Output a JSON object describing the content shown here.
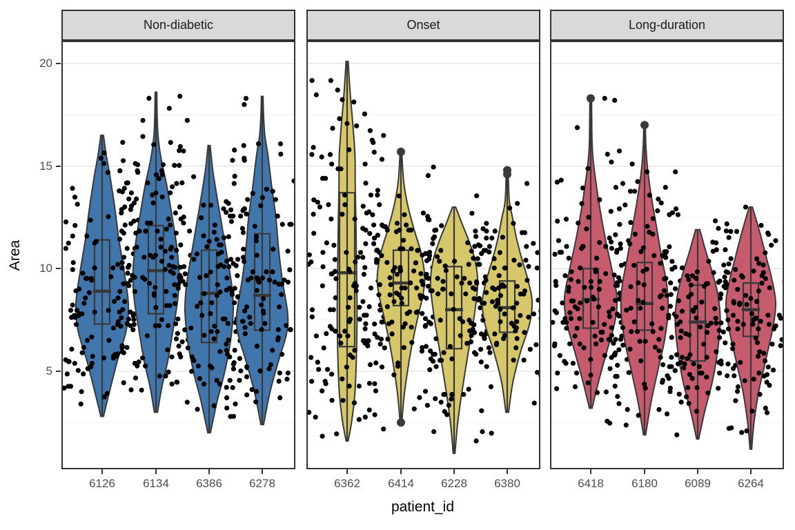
{
  "chart_data": {
    "type": "violin",
    "description": "Faceted violin plots with inner boxplots and black jittered points of Area by patient_id",
    "xlabel": "patient_id",
    "ylabel": "Area",
    "y_ticks": [
      20,
      15,
      10,
      5
    ],
    "ylim": [
      0.2,
      21.1
    ],
    "grid": "major and minor horizontal gridlines",
    "legend": "none",
    "style": {
      "violin_outline": "#383838",
      "point_color": "#000000",
      "strip_fill": "#d9d9d9",
      "panel_border": "#333333",
      "grid_major": "#e5e5e5",
      "grid_minor": "#f0f0f0",
      "tick_text": "#4d4d4d",
      "background": "#ffffff"
    },
    "facets": [
      {
        "label": "Non-diabetic",
        "fill": "#4176ac",
        "violins": [
          {
            "patient_id": "6126",
            "min": 2.8,
            "max": 16.5,
            "q1": 7.3,
            "median": 8.9,
            "q3": 11.4,
            "n_points": 120,
            "outliers": [],
            "profile": [
              [
                2.8,
                0.05
              ],
              [
                4,
                0.28
              ],
              [
                5.5,
                0.58
              ],
              [
                7,
                0.92
              ],
              [
                8.3,
                1.0
              ],
              [
                10,
                0.82
              ],
              [
                11.5,
                0.63
              ],
              [
                13,
                0.48
              ],
              [
                14.5,
                0.3
              ],
              [
                15.5,
                0.16
              ],
              [
                16.5,
                0.05
              ]
            ]
          },
          {
            "patient_id": "6134",
            "min": 3.0,
            "max": 18.6,
            "q1": 7.8,
            "median": 9.9,
            "q3": 12.1,
            "n_points": 130,
            "outliers": [],
            "profile": [
              [
                3,
                0.06
              ],
              [
                4.2,
                0.22
              ],
              [
                5.5,
                0.45
              ],
              [
                7,
                0.65
              ],
              [
                8.5,
                0.83
              ],
              [
                9.7,
                0.88
              ],
              [
                11,
                0.8
              ],
              [
                12.5,
                0.62
              ],
              [
                14,
                0.42
              ],
              [
                15.2,
                0.22
              ],
              [
                16.2,
                0.1
              ],
              [
                17.2,
                0.05
              ],
              [
                18.6,
                0.03
              ]
            ]
          },
          {
            "patient_id": "6386",
            "min": 2.0,
            "max": 16.0,
            "q1": 6.4,
            "median": 8.8,
            "q3": 10.9,
            "n_points": 115,
            "outliers": [],
            "profile": [
              [
                2,
                0.05
              ],
              [
                3.5,
                0.3
              ],
              [
                5,
                0.6
              ],
              [
                6.5,
                0.82
              ],
              [
                8,
                0.92
              ],
              [
                9.2,
                0.86
              ],
              [
                10.5,
                0.7
              ],
              [
                12,
                0.5
              ],
              [
                13.5,
                0.3
              ],
              [
                14.8,
                0.14
              ],
              [
                16,
                0.04
              ]
            ]
          },
          {
            "patient_id": "6278",
            "min": 2.4,
            "max": 18.4,
            "q1": 7.0,
            "median": 8.7,
            "q3": 11.7,
            "n_points": 125,
            "outliers": [],
            "profile": [
              [
                2.4,
                0.05
              ],
              [
                4,
                0.3
              ],
              [
                5.5,
                0.62
              ],
              [
                6.8,
                0.92
              ],
              [
                7.8,
                0.97
              ],
              [
                9.5,
                0.76
              ],
              [
                11,
                0.62
              ],
              [
                12.5,
                0.52
              ],
              [
                14,
                0.36
              ],
              [
                15.5,
                0.22
              ],
              [
                16.5,
                0.1
              ],
              [
                17.5,
                0.05
              ],
              [
                18.4,
                0.03
              ]
            ]
          }
        ]
      },
      {
        "label": "Onset",
        "fill": "#d6c76a",
        "violins": [
          {
            "patient_id": "6362",
            "min": 1.6,
            "max": 20.1,
            "q1": 6.2,
            "median": 9.8,
            "q3": 13.7,
            "n_points": 140,
            "outliers": [],
            "profile": [
              [
                1.6,
                0.04
              ],
              [
                2.6,
                0.18
              ],
              [
                4,
                0.3
              ],
              [
                6,
                0.36
              ],
              [
                8,
                0.38
              ],
              [
                10,
                0.36
              ],
              [
                12,
                0.34
              ],
              [
                14,
                0.31
              ],
              [
                15.5,
                0.3
              ],
              [
                17,
                0.22
              ],
              [
                18.5,
                0.12
              ],
              [
                20.1,
                0.04
              ]
            ]
          },
          {
            "patient_id": "6414",
            "min": 2.5,
            "max": 15.7,
            "q1": 8.2,
            "median": 9.3,
            "q3": 10.9,
            "n_points": 120,
            "outliers": [
              15.7,
              2.5
            ],
            "profile": [
              [
                2.5,
                0.03
              ],
              [
                4,
                0.14
              ],
              [
                6,
                0.38
              ],
              [
                7.5,
                0.62
              ],
              [
                8.8,
                0.85
              ],
              [
                9.7,
                0.9
              ],
              [
                10.8,
                0.76
              ],
              [
                12,
                0.48
              ],
              [
                13.2,
                0.24
              ],
              [
                14.3,
                0.1
              ],
              [
                15.7,
                0.03
              ]
            ]
          },
          {
            "patient_id": "6228",
            "min": 1.0,
            "max": 13.0,
            "q1": 6.1,
            "median": 8.0,
            "q3": 10.1,
            "n_points": 110,
            "outliers": [],
            "profile": [
              [
                1,
                0.03
              ],
              [
                2.5,
                0.14
              ],
              [
                4,
                0.3
              ],
              [
                6,
                0.55
              ],
              [
                7.8,
                0.78
              ],
              [
                9.3,
                0.9
              ],
              [
                10.4,
                0.8
              ],
              [
                11.4,
                0.55
              ],
              [
                12.2,
                0.3
              ],
              [
                13,
                0.06
              ]
            ]
          },
          {
            "patient_id": "6380",
            "min": 3.0,
            "max": 14.9,
            "q1": 6.9,
            "median": 8.1,
            "q3": 9.4,
            "n_points": 100,
            "outliers": [
              14.8,
              14.6
            ],
            "profile": [
              [
                3,
                0.05
              ],
              [
                4.5,
                0.22
              ],
              [
                6,
                0.52
              ],
              [
                7.3,
                0.85
              ],
              [
                8.4,
                0.95
              ],
              [
                9.5,
                0.78
              ],
              [
                10.5,
                0.55
              ],
              [
                11.5,
                0.35
              ],
              [
                12.5,
                0.2
              ],
              [
                13.3,
                0.08
              ],
              [
                14.9,
                0.03
              ]
            ]
          }
        ]
      },
      {
        "label": "Long-duration",
        "fill": "#c65b6e",
        "violins": [
          {
            "patient_id": "6418",
            "min": 3.2,
            "max": 18.3,
            "q1": 7.1,
            "median": 8.5,
            "q3": 10.0,
            "n_points": 120,
            "outliers": [
              18.3
            ],
            "profile": [
              [
                3.2,
                0.05
              ],
              [
                4.5,
                0.3
              ],
              [
                6,
                0.62
              ],
              [
                7.4,
                0.92
              ],
              [
                8.6,
                1.0
              ],
              [
                10,
                0.8
              ],
              [
                11.5,
                0.55
              ],
              [
                13,
                0.34
              ],
              [
                14.2,
                0.2
              ],
              [
                15.2,
                0.1
              ],
              [
                16.2,
                0.05
              ],
              [
                18.3,
                0.02
              ]
            ]
          },
          {
            "patient_id": "6180",
            "min": 1.9,
            "max": 17.0,
            "q1": 7.0,
            "median": 8.3,
            "q3": 10.3,
            "n_points": 120,
            "outliers": [
              17.0
            ],
            "profile": [
              [
                1.9,
                0.04
              ],
              [
                3.5,
                0.25
              ],
              [
                5,
                0.5
              ],
              [
                6.5,
                0.76
              ],
              [
                8,
                0.9
              ],
              [
                9.2,
                0.85
              ],
              [
                10.5,
                0.66
              ],
              [
                12,
                0.46
              ],
              [
                13.5,
                0.26
              ],
              [
                14.8,
                0.12
              ],
              [
                16,
                0.05
              ],
              [
                17,
                0.02
              ]
            ]
          },
          {
            "patient_id": "6089",
            "min": 1.7,
            "max": 11.9,
            "q1": 5.5,
            "median": 7.4,
            "q3": 9.2,
            "n_points": 100,
            "outliers": [],
            "profile": [
              [
                1.7,
                0.04
              ],
              [
                3,
                0.26
              ],
              [
                4.5,
                0.56
              ],
              [
                6,
                0.76
              ],
              [
                7.5,
                0.86
              ],
              [
                8.8,
                0.76
              ],
              [
                9.8,
                0.56
              ],
              [
                10.8,
                0.32
              ],
              [
                11.9,
                0.08
              ]
            ]
          },
          {
            "patient_id": "6264",
            "min": 1.2,
            "max": 13.0,
            "q1": 6.7,
            "median": 8.0,
            "q3": 9.3,
            "n_points": 120,
            "outliers": [],
            "profile": [
              [
                1.2,
                0.03
              ],
              [
                2.5,
                0.12
              ],
              [
                4,
                0.3
              ],
              [
                5.5,
                0.56
              ],
              [
                7,
                0.82
              ],
              [
                8.3,
                0.95
              ],
              [
                9.5,
                0.8
              ],
              [
                10.5,
                0.6
              ],
              [
                11.5,
                0.4
              ],
              [
                12.4,
                0.2
              ],
              [
                13,
                0.06
              ]
            ]
          }
        ]
      }
    ]
  }
}
